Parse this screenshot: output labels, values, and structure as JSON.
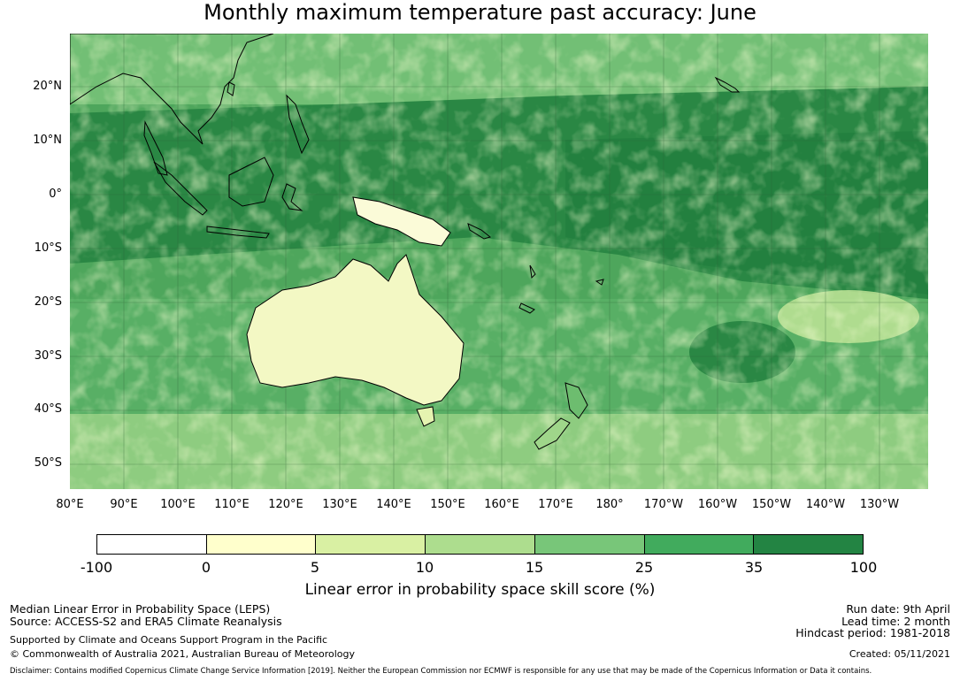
{
  "title": "Monthly maximum temperature past accuracy: June",
  "map": {
    "lat_labels": [
      "20°N",
      "10°N",
      "0°",
      "10°S",
      "20°S",
      "30°S",
      "40°S",
      "50°S"
    ],
    "lon_labels": [
      "80°E",
      "90°E",
      "100°E",
      "110°E",
      "120°E",
      "130°E",
      "140°E",
      "150°E",
      "160°E",
      "170°E",
      "180°",
      "170°W",
      "160°W",
      "150°W",
      "140°W",
      "130°W"
    ]
  },
  "colorbar": {
    "title": "Linear error in probability space skill score (%)",
    "ticks": [
      "-100",
      "0",
      "5",
      "10",
      "15",
      "25",
      "35",
      "100"
    ],
    "colors": [
      "#ffffff",
      "#ffffcc",
      "#d9f0a3",
      "#addd8e",
      "#78c679",
      "#41ab5d",
      "#238443"
    ]
  },
  "footer": {
    "method": "Median Linear Error in Probability Space (LEPS)",
    "source": "Source: ACCESS-S2 and ERA5 Climate Reanalysis",
    "support": "Supported by Climate and Oceans Support Program in the Pacific",
    "copyright": "© Commonwealth of Australia 2021, Australian Bureau of Meteorology",
    "run_date": "Run date: 9th April",
    "lead_time": "Lead time: 2 month",
    "hindcast": "Hindcast period: 1981-2018",
    "created": "Created: 05/11/2021",
    "disclaimer": "Disclaimer: Contains modified Copernicus Climate Change Service Information [2019]. Neither the European Commission nor ECMWF is responsible for any use that may be made of the Copernicus Information or Data it contains."
  }
}
